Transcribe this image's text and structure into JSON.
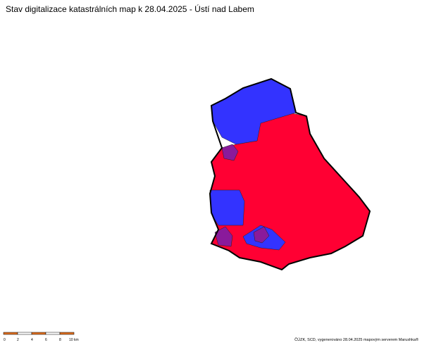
{
  "title": "Stav digitalizace katastrálních map k 28.04.2025 - Ústí nad Labem",
  "scale_bar": {
    "labels": [
      "0",
      "2",
      "4",
      "6",
      "8",
      "10 km"
    ]
  },
  "credit": "ČÚZK, SCD, vygenerováno 28.04.2025 mapovým serverem Marushka®"
}
